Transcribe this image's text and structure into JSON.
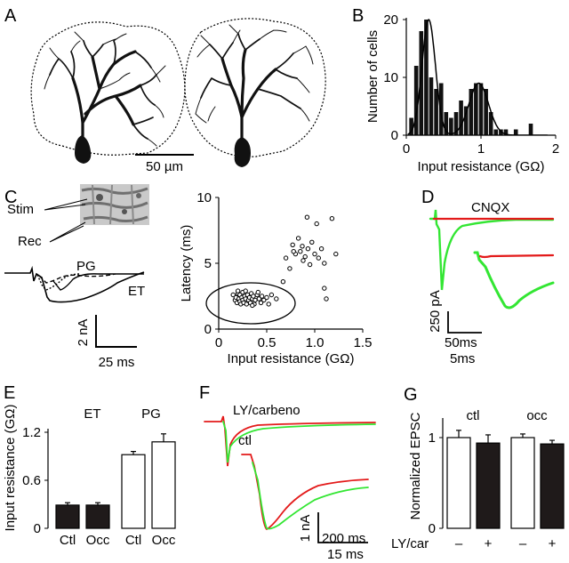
{
  "panels": {
    "A": {
      "label": "A",
      "scale_bar": "50 µm"
    },
    "B": {
      "label": "B",
      "chart_data": {
        "type": "bar",
        "xlabel": "Input resistance (GΩ)",
        "ylabel": "Number of cells",
        "xlim": [
          0,
          2
        ],
        "ylim": [
          0,
          20
        ],
        "xticks": [
          "0",
          "1",
          "2"
        ],
        "yticks": [
          "0",
          "10",
          "20"
        ],
        "bin_width": 0.067,
        "bin_centers": [
          0.067,
          0.133,
          0.2,
          0.267,
          0.333,
          0.4,
          0.467,
          0.533,
          0.6,
          0.667,
          0.733,
          0.8,
          0.867,
          0.933,
          1.0,
          1.067,
          1.133,
          1.2,
          1.267,
          1.333,
          1.4,
          1.467,
          1.533,
          1.6,
          1.667
        ],
        "values": [
          3,
          12,
          18,
          20,
          10,
          8,
          9,
          4,
          3,
          4,
          6,
          5,
          8,
          9,
          9,
          8,
          4,
          1,
          1,
          1,
          0,
          1,
          0,
          0,
          2
        ],
        "fit": {
          "type": "bimodal_gaussian",
          "components": [
            {
              "mean": 0.3,
              "sd": 0.09,
              "amplitude": 20
            },
            {
              "mean": 0.97,
              "sd": 0.13,
              "amplitude": 9
            }
          ]
        }
      }
    },
    "C": {
      "label": "C",
      "image_labels": [
        "Stim",
        "Rec"
      ],
      "trace_labels": [
        "PG",
        "ET"
      ],
      "scale_bar_y": "2 nA",
      "scale_bar_x": "25 ms",
      "chart_data": {
        "type": "scatter",
        "xlabel": "Input resistance (GΩ)",
        "ylabel": "Latency (ms)",
        "xlim": [
          0,
          1.5
        ],
        "ylim": [
          0,
          10
        ],
        "xticks": [
          "0",
          "0.5",
          "1.0",
          "1.5"
        ],
        "yticks": [
          "0",
          "5",
          "10"
        ],
        "points": [
          [
            0.15,
            2.6
          ],
          [
            0.17,
            2.2
          ],
          [
            0.18,
            2.4
          ],
          [
            0.19,
            2.0
          ],
          [
            0.2,
            2.7
          ],
          [
            0.21,
            2.3
          ],
          [
            0.22,
            2.1
          ],
          [
            0.22,
            2.6
          ],
          [
            0.23,
            1.9
          ],
          [
            0.24,
            2.4
          ],
          [
            0.25,
            2.2
          ],
          [
            0.25,
            2.8
          ],
          [
            0.26,
            2.0
          ],
          [
            0.27,
            2.5
          ],
          [
            0.28,
            2.3
          ],
          [
            0.29,
            1.9
          ],
          [
            0.3,
            2.6
          ],
          [
            0.31,
            2.2
          ],
          [
            0.32,
            2.4
          ],
          [
            0.33,
            2.0
          ],
          [
            0.34,
            2.7
          ],
          [
            0.35,
            2.3
          ],
          [
            0.36,
            2.5
          ],
          [
            0.37,
            1.9
          ],
          [
            0.38,
            2.2
          ],
          [
            0.4,
            2.6
          ],
          [
            0.42,
            2.3
          ],
          [
            0.44,
            2.0
          ],
          [
            0.45,
            2.5
          ],
          [
            0.47,
            2.2
          ],
          [
            0.5,
            2.4
          ],
          [
            0.52,
            1.9
          ],
          [
            0.55,
            2.6
          ],
          [
            0.6,
            2.3
          ],
          [
            0.28,
            2.9
          ],
          [
            0.2,
            2.9
          ],
          [
            0.35,
            1.8
          ],
          [
            0.41,
            2.8
          ],
          [
            0.67,
            3.6
          ],
          [
            0.7,
            5.4
          ],
          [
            0.74,
            4.6
          ],
          [
            0.77,
            6.4
          ],
          [
            0.8,
            5.7
          ],
          [
            0.83,
            6.9
          ],
          [
            0.85,
            5.9
          ],
          [
            0.87,
            6.3
          ],
          [
            0.9,
            5.5
          ],
          [
            0.93,
            6.1
          ],
          [
            0.95,
            4.9
          ],
          [
            0.97,
            6.6
          ],
          [
            1.0,
            5.7
          ],
          [
            1.02,
            8.0
          ],
          [
            1.04,
            5.4
          ],
          [
            1.07,
            6.1
          ],
          [
            1.1,
            5.0
          ],
          [
            1.1,
            3.1
          ],
          [
            1.12,
            2.3
          ],
          [
            1.18,
            8.4
          ],
          [
            1.22,
            5.7
          ],
          [
            0.92,
            8.5
          ],
          [
            0.88,
            5.2
          ],
          [
            0.78,
            5.9
          ]
        ]
      }
    },
    "D": {
      "label": "D",
      "trace_label": "CNQX",
      "scale_bar_y": "250 pA",
      "scale_bar_x": "50ms",
      "scale_bar_x_inset": "5ms"
    },
    "E": {
      "label": "E",
      "group_labels": [
        "ET",
        "PG"
      ],
      "chart_data": {
        "type": "bar",
        "ylabel": "Input resistance (GΩ)",
        "ylim": [
          0,
          1.2
        ],
        "yticks": [
          "0",
          "0.6",
          "1.2"
        ],
        "categories": [
          "Ctl",
          "Occ",
          "Ctl",
          "Occ"
        ],
        "groups": [
          "ET",
          "ET",
          "PG",
          "PG"
        ],
        "values": [
          0.29,
          0.29,
          0.92,
          1.08
        ],
        "errors": [
          0.03,
          0.03,
          0.04,
          0.1
        ],
        "colors": [
          "#1f1a1a",
          "#1f1a1a",
          "#ffffff",
          "#ffffff"
        ]
      }
    },
    "F": {
      "label": "F",
      "trace_labels": [
        "LY/carbeno",
        "ctl"
      ],
      "scale_bar_y": "1 nA",
      "scale_bar_x": "200 ms",
      "scale_bar_x_inset": "15 ms"
    },
    "G": {
      "label": "G",
      "group_labels": [
        "ctl",
        "occ"
      ],
      "row_label": "LY/car",
      "condition_labels": [
        "–",
        "+",
        "–",
        "+"
      ],
      "chart_data": {
        "type": "bar",
        "ylabel": "Normalized EPSC",
        "ylim": [
          0,
          1.1
        ],
        "yticks": [
          "0",
          "1"
        ],
        "groups": [
          "ctl",
          "ctl",
          "occ",
          "occ"
        ],
        "values": [
          1.0,
          0.94,
          1.0,
          0.93
        ],
        "errors": [
          0.08,
          0.09,
          0.04,
          0.04
        ],
        "colors": [
          "#ffffff",
          "#1f1a1a",
          "#ffffff",
          "#1f1a1a"
        ]
      }
    }
  },
  "colors": {
    "green": "#33e633",
    "red": "#e31a1a",
    "dark_bar": "#1f1a1a"
  }
}
